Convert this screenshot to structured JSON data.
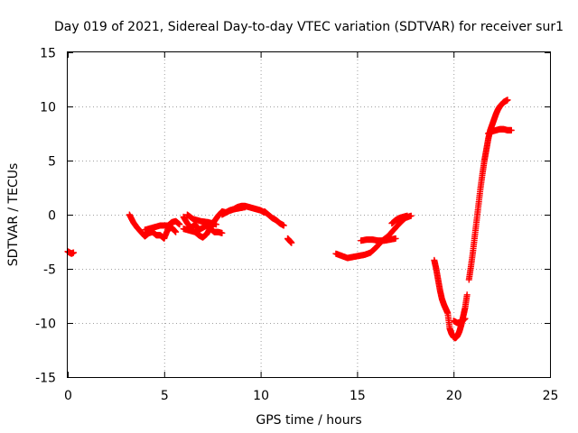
{
  "chart_data": {
    "type": "scatter",
    "title": "Day 019 of 2021, Sidereal Day-to-day VTEC variation (SDTVAR) for receiver sur1",
    "xlabel": "GPS time / hours",
    "ylabel": "SDTVAR / TECUs",
    "xlim": [
      0,
      25
    ],
    "ylim": [
      -15,
      15
    ],
    "xticks": [
      "0",
      "5",
      "10",
      "15",
      "20",
      "25"
    ],
    "yticks": [
      "-15",
      "-10",
      "-5",
      "0",
      "5",
      "10",
      "15"
    ],
    "grid": true,
    "marker": "+",
    "color": "#ff0000",
    "segments": [
      {
        "x": [
          0.0,
          0.1,
          0.2,
          0.3
        ],
        "y": [
          -3.4,
          -3.5,
          -3.6,
          -3.5
        ]
      },
      {
        "x": [
          3.2,
          3.4,
          3.6,
          3.8,
          4.0,
          4.2,
          4.4,
          4.6,
          4.8,
          5.0,
          5.2,
          5.4,
          5.6
        ],
        "y": [
          0.0,
          -0.7,
          -1.2,
          -1.6,
          -2.0,
          -1.7,
          -1.6,
          -1.9,
          -1.9,
          -2.2,
          -1.3,
          -1.2,
          -1.6
        ]
      },
      {
        "x": [
          4.0,
          4.4,
          4.8,
          5.2,
          5.4,
          5.6,
          5.8
        ],
        "y": [
          -1.4,
          -1.2,
          -1.0,
          -1.0,
          -0.7,
          -0.6,
          -0.9
        ]
      },
      {
        "x": [
          6.0,
          6.2,
          6.4,
          6.6,
          6.8,
          7.0,
          7.2,
          7.4,
          7.6,
          7.8,
          8.0
        ],
        "y": [
          -0.2,
          -0.8,
          -1.2,
          -0.9,
          -1.4,
          -1.2,
          -1.0,
          -1.3,
          -1.6,
          -1.6,
          -1.7
        ]
      },
      {
        "x": [
          6.0,
          6.2,
          6.4,
          6.6,
          6.8,
          7.0,
          7.2,
          7.4,
          7.6,
          7.8,
          8.0,
          8.2,
          8.4,
          8.6,
          8.8,
          9.0,
          9.2,
          9.4,
          9.6,
          9.8,
          10.0,
          10.2
        ],
        "y": [
          -1.3,
          -1.4,
          -1.5,
          -1.6,
          -1.9,
          -2.1,
          -1.8,
          -1.2,
          -0.6,
          -0.1,
          0.3,
          0.2,
          0.4,
          0.5,
          0.7,
          0.8,
          0.8,
          0.7,
          0.6,
          0.5,
          0.4,
          0.2
        ]
      },
      {
        "x": [
          6.2,
          6.5,
          6.9,
          7.3,
          7.7
        ],
        "y": [
          0.0,
          -0.4,
          -0.6,
          -0.7,
          -0.9
        ]
      },
      {
        "x": [
          8.0,
          8.3,
          8.6,
          8.9,
          9.2
        ],
        "y": [
          0.0,
          0.3,
          0.5,
          0.6,
          0.7
        ]
      },
      {
        "x": [
          10.2,
          10.4,
          10.6,
          10.8,
          11.0,
          11.2
        ],
        "y": [
          0.3,
          0.0,
          -0.3,
          -0.5,
          -0.8,
          -1.0
        ]
      },
      {
        "x": [
          11.4,
          11.5,
          11.6
        ],
        "y": [
          -2.2,
          -2.4,
          -2.6
        ]
      },
      {
        "x": [
          13.9,
          14.2,
          14.5,
          14.8,
          15.1,
          15.4,
          15.7,
          16.0,
          16.3,
          16.6,
          16.9,
          17.2,
          17.5,
          17.8
        ],
        "y": [
          -3.6,
          -3.8,
          -4.0,
          -3.9,
          -3.8,
          -3.7,
          -3.5,
          -3.0,
          -2.4,
          -2.0,
          -1.4,
          -0.8,
          -0.3,
          -0.1
        ]
      },
      {
        "x": [
          15.2,
          15.5,
          15.8,
          16.1,
          16.4,
          16.7,
          17.0
        ],
        "y": [
          -2.4,
          -2.3,
          -2.3,
          -2.4,
          -2.4,
          -2.3,
          -2.2
        ]
      },
      {
        "x": [
          16.8,
          17.0,
          17.2,
          17.4,
          17.6
        ],
        "y": [
          -0.8,
          -0.5,
          -0.3,
          -0.2,
          -0.1
        ]
      },
      {
        "x": [
          19.0,
          19.1,
          19.2,
          19.3,
          19.4,
          19.5,
          19.6,
          19.7,
          19.8,
          19.9,
          20.0,
          20.1,
          20.2,
          20.3,
          20.4,
          20.5,
          20.6,
          20.7
        ],
        "y": [
          -4.2,
          -5.0,
          -6.0,
          -7.0,
          -7.8,
          -8.3,
          -8.7,
          -9.1,
          -10.5,
          -11.0,
          -11.3,
          -11.4,
          -11.2,
          -10.8,
          -10.2,
          -9.4,
          -8.6,
          -7.4
        ]
      },
      {
        "x": [
          20.0,
          20.2,
          20.4,
          20.6
        ],
        "y": [
          -9.8,
          -10.0,
          -9.9,
          -9.6
        ]
      },
      {
        "x": [
          20.8,
          20.9,
          21.0,
          21.1,
          21.2,
          21.3,
          21.4,
          21.5,
          21.6,
          21.7,
          21.8,
          21.9,
          22.0,
          22.1,
          22.2,
          22.3,
          22.4,
          22.5,
          22.6,
          22.7,
          22.8
        ],
        "y": [
          -6.0,
          -4.8,
          -3.5,
          -2.0,
          -0.5,
          1.0,
          2.5,
          3.8,
          5.0,
          6.0,
          7.0,
          7.8,
          8.3,
          8.8,
          9.3,
          9.7,
          10.0,
          10.2,
          10.4,
          10.5,
          10.6
        ]
      },
      {
        "x": [
          21.8,
          22.0,
          22.2,
          22.4,
          22.6,
          22.8,
          23.0
        ],
        "y": [
          7.5,
          7.7,
          7.8,
          7.9,
          7.9,
          7.8,
          7.8
        ]
      }
    ]
  }
}
